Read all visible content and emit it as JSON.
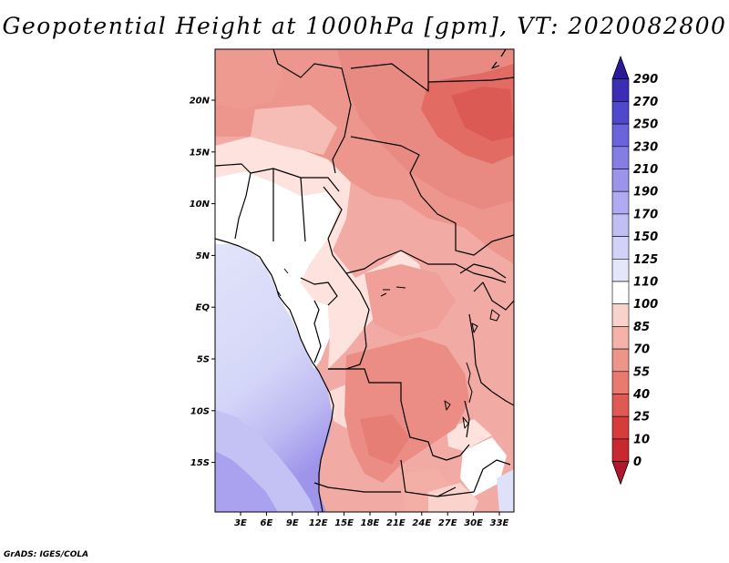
{
  "title": "Geopotential Height at 1000hPa [gpm], VT: 2020082800",
  "credit": "GrADS: IGES/COLA",
  "map": {
    "variable": "Geopotential Height at 1000hPa",
    "units": "gpm",
    "valid_time": "2020082800",
    "lat_ticks": [
      "20N",
      "15N",
      "10N",
      "5N",
      "EQ",
      "5S",
      "10S",
      "15S"
    ],
    "lon_ticks": [
      "3E",
      "6E",
      "9E",
      "12E",
      "15E",
      "18E",
      "21E",
      "24E",
      "27E",
      "30E",
      "33E"
    ]
  },
  "colorbar": {
    "levels": [
      "0",
      "10",
      "25",
      "40",
      "55",
      "70",
      "85",
      "100",
      "110",
      "125",
      "150",
      "170",
      "190",
      "210",
      "230",
      "250",
      "270",
      "290"
    ],
    "colors": [
      "#b2182b",
      "#c62a30",
      "#d73c3c",
      "#e05a55",
      "#e87a70",
      "#ee958a",
      "#f4b2a8",
      "#f9d2cb",
      "#ffffff",
      "#e4e6fa",
      "#d0d2f7",
      "#bfbff3",
      "#aeabf0",
      "#9a95eb",
      "#837de4",
      "#6b63db",
      "#5048cc",
      "#3a2eb5",
      "#2a1a9a"
    ]
  }
}
